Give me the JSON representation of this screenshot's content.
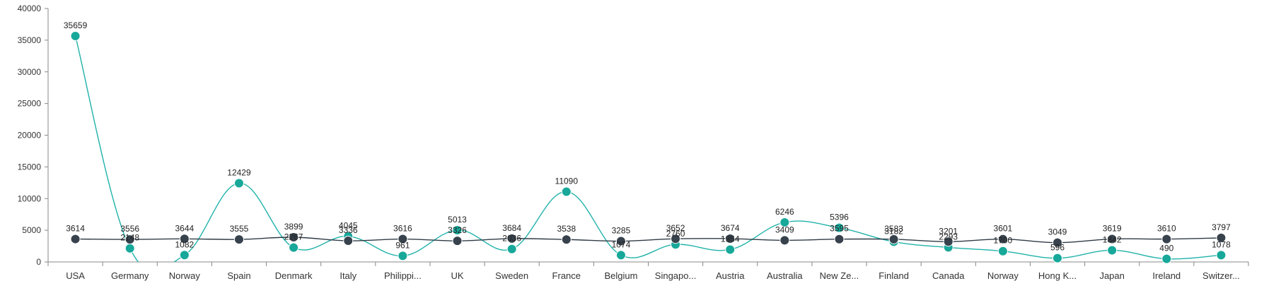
{
  "chart_data": {
    "type": "line",
    "smooth": true,
    "categories": [
      "USA",
      "Germany",
      "Norway",
      "Spain",
      "Denmark",
      "Italy",
      "Philippi...",
      "UK",
      "Sweden",
      "France",
      "Belgium",
      "Singapo...",
      "Austria",
      "Australia",
      "New Ze...",
      "Finland",
      "Canada",
      "Norway",
      "Hong K...",
      "Japan",
      "Ireland",
      "Switzer..."
    ],
    "series": [
      {
        "color": "#20b2aa",
        "marker_color": "#17a89a",
        "values": [
          35659,
          2148,
          1082,
          12429,
          2267,
          4045,
          961,
          5013,
          2036,
          11090,
          1074,
          2760,
          1954,
          6246,
          5396,
          3182,
          2293,
          1700,
          596,
          1842,
          490,
          1078
        ]
      },
      {
        "color": "#2f3b46",
        "marker_color": "#37424d",
        "values": [
          3614,
          3556,
          3644,
          3555,
          3899,
          3336,
          3616,
          3326,
          3684,
          3538,
          3285,
          3652,
          3674,
          3409,
          3595,
          3583,
          3201,
          3601,
          3049,
          3619,
          3610,
          3797
        ]
      }
    ],
    "yticks": [
      "0",
      "5000",
      "10000",
      "15000",
      "20000",
      "25000",
      "30000",
      "35000",
      "40000"
    ],
    "ylim": [
      0,
      40000
    ],
    "grid": false,
    "legend": "none",
    "title": "",
    "xlabel": "",
    "ylabel": ""
  }
}
